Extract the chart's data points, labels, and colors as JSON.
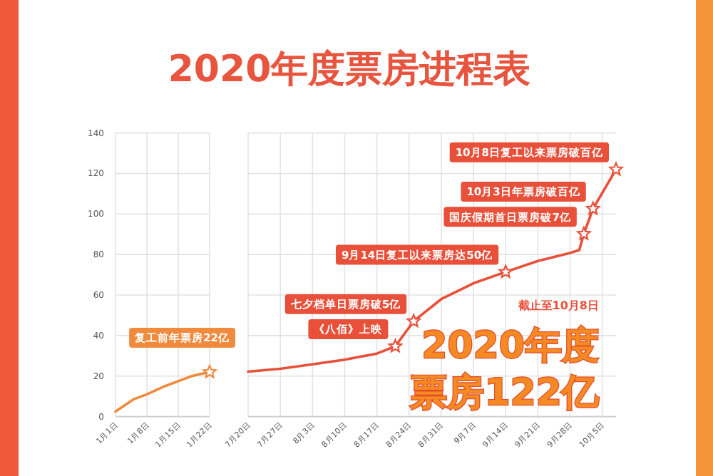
{
  "chart_data": [
    {
      "type": "line",
      "title": "2020年度票房进程表",
      "x": [
        "--01-01",
        "--01-05",
        "--01-08",
        "--01-12",
        "--01-15",
        "--01-18",
        "--01-22"
      ],
      "series": [
        {
          "color": "#f08a3c",
          "values": [
            2.5,
            8.5,
            11,
            15,
            17.5,
            20,
            22
          ]
        }
      ],
      "xlim": [
        "--01-01",
        "--01-22"
      ],
      "xticks": [
        {
          "value": "--01-01",
          "label": "1月1日"
        },
        {
          "value": "--01-08",
          "label": "1月8日"
        },
        {
          "value": "--01-15",
          "label": "1月15日"
        },
        {
          "value": "--01-22",
          "label": "1月22日"
        }
      ],
      "ylim": [
        0,
        140
      ],
      "yticks": [
        0,
        20,
        40,
        60,
        80,
        100,
        120,
        140
      ],
      "grid": true,
      "annotations": [
        {
          "text": "复工前年票房22亿",
          "x": "--01-22",
          "y": 22
        }
      ]
    },
    {
      "type": "line",
      "x": [
        "--07-20",
        "--07-27",
        "--08-03",
        "--08-10",
        "--08-17",
        "--08-21",
        "--08-25",
        "--08-31",
        "--09-07",
        "--09-14",
        "--09-21",
        "--09-28",
        "--09-30",
        "--10-01",
        "--10-03",
        "--10-08"
      ],
      "series": [
        {
          "color": "#e8503a",
          "values": [
            22.2,
            23.6,
            25.8,
            28.1,
            31.1,
            34.7,
            47.1,
            58,
            65.8,
            71.4,
            76.8,
            80.8,
            82.2,
            90.2,
            102.6,
            122
          ]
        }
      ],
      "xlim": [
        "--07-20",
        "--10-08"
      ],
      "xticks": [
        {
          "value": "--07-20",
          "label": "7月20日"
        },
        {
          "value": "--07-27",
          "label": "7月27日"
        },
        {
          "value": "--08-03",
          "label": "8月3日"
        },
        {
          "value": "--08-10",
          "label": "8月10日"
        },
        {
          "value": "--08-17",
          "label": "8月17日"
        },
        {
          "value": "--08-24",
          "label": "8月24日"
        },
        {
          "value": "--08-31",
          "label": "8月31日"
        },
        {
          "value": "--09-07",
          "label": "9月7日"
        },
        {
          "value": "--09-14",
          "label": "9月14日"
        },
        {
          "value": "--09-21",
          "label": "9月21日"
        },
        {
          "value": "--09-28",
          "label": "9月28日"
        },
        {
          "value": "--10-05",
          "label": "10月5日"
        }
      ],
      "ylim": [
        0,
        140
      ],
      "yticks": [
        0,
        20,
        40,
        60,
        80,
        100,
        120,
        140
      ],
      "grid": true,
      "tick_labels": "x",
      "annotations": [
        {
          "text": "10月8日复工以来票房破百亿",
          "x": "--10-08",
          "y": 122
        },
        {
          "text": "10月3日年票房破百亿",
          "x": "--10-03",
          "y": 102.6
        },
        {
          "text": "国庆假期首日票房破7亿",
          "x": "--10-01",
          "y": 90.2
        },
        {
          "text": "9月14日复工以来票房达50亿",
          "x": "--09-14",
          "y": 71.4
        },
        {
          "text": "七夕档单日票房破5亿",
          "x": "--08-25",
          "y": 47.1
        },
        {
          "text": "《八佰》上映",
          "x": "--08-21",
          "y": 34.7
        },
        "截止至10月8日",
        "2020年度",
        "票房122亿"
      ]
    }
  ]
}
